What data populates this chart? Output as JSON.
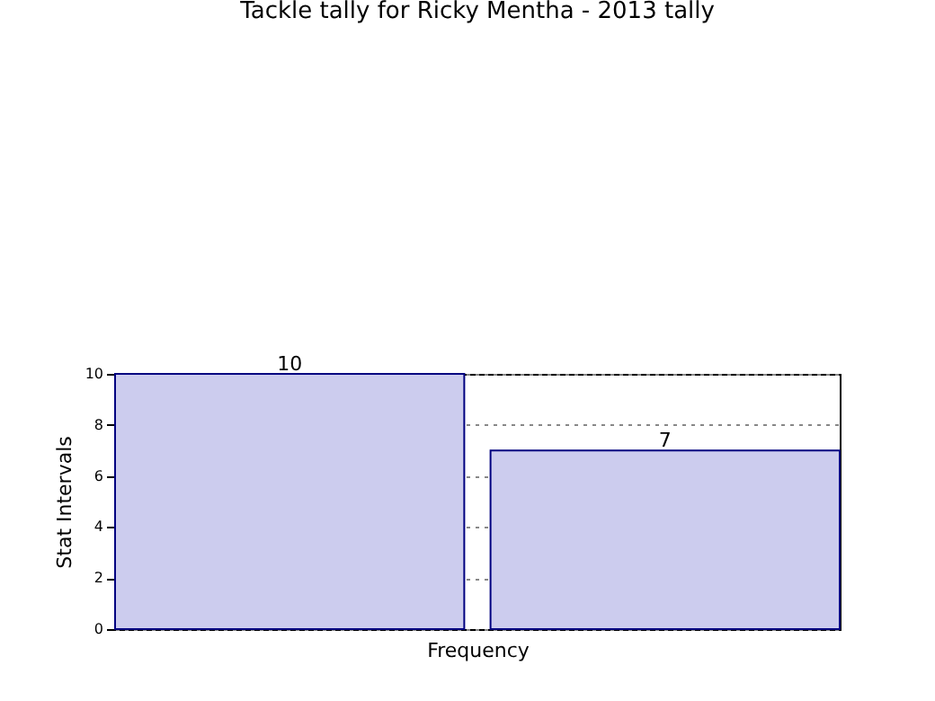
{
  "chart_data": {
    "type": "bar",
    "title": "Tackle tally for Ricky Mentha - 2013 tally",
    "xlabel": "Frequency",
    "ylabel": "Stat Intervals",
    "categories": [
      null,
      null,
      null
    ],
    "values": [
      10,
      null,
      7
    ],
    "color": "#ccccee",
    "ylim": [
      0,
      10
    ],
    "yticks": [
      0,
      2,
      4,
      6,
      8,
      10
    ],
    "grid": "y",
    "data_labels": true
  }
}
